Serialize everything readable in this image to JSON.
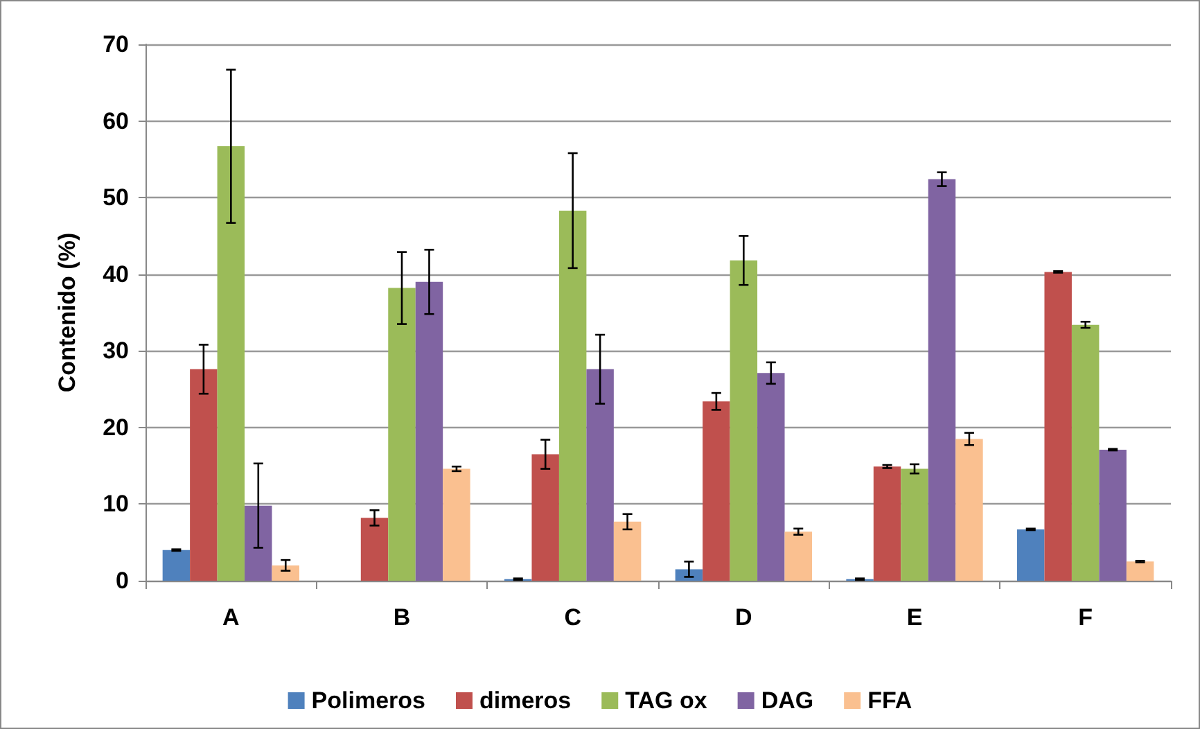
{
  "chart_data": {
    "type": "bar",
    "ylabel": "Contenido (%)",
    "categories": [
      "A",
      "B",
      "C",
      "D",
      "E",
      "F"
    ],
    "series": [
      {
        "name": "Polimeros",
        "color": "#4f81bd",
        "values": [
          4.0,
          null,
          0.2,
          1.5,
          0.2,
          6.7
        ],
        "errors": [
          0.1,
          null,
          0.1,
          1,
          0.1,
          0.1
        ]
      },
      {
        "name": "dimeros",
        "color": "#c0504d",
        "values": [
          27.6,
          8.2,
          16.5,
          23.4,
          14.9,
          40.3
        ],
        "errors": [
          3.2,
          1,
          1.9,
          1.1,
          0.2,
          0.1
        ]
      },
      {
        "name": "TAG ox",
        "color": "#9bbb59",
        "values": [
          56.7,
          38.2,
          48.3,
          41.8,
          14.6,
          33.4
        ],
        "errors": [
          10,
          4.7,
          7.5,
          3.2,
          0.6,
          0.4
        ]
      },
      {
        "name": "DAG",
        "color": "#8064a2",
        "values": [
          9.8,
          39,
          27.6,
          27.1,
          52.4,
          17.1
        ],
        "errors": [
          5.5,
          4.2,
          4.5,
          1.4,
          0.9,
          0.1
        ]
      },
      {
        "name": "FFA",
        "color": "#fac090",
        "values": [
          2.0,
          14.6,
          7.7,
          6.4,
          18.5,
          2.5
        ],
        "errors": [
          0.7,
          0.3,
          1,
          0.4,
          0.8,
          0.1
        ]
      }
    ],
    "ylim": [
      0,
      70
    ],
    "yticks": [
      0,
      10,
      20,
      30,
      40,
      50,
      60,
      70
    ],
    "grid": "y",
    "legend": "bottom"
  }
}
